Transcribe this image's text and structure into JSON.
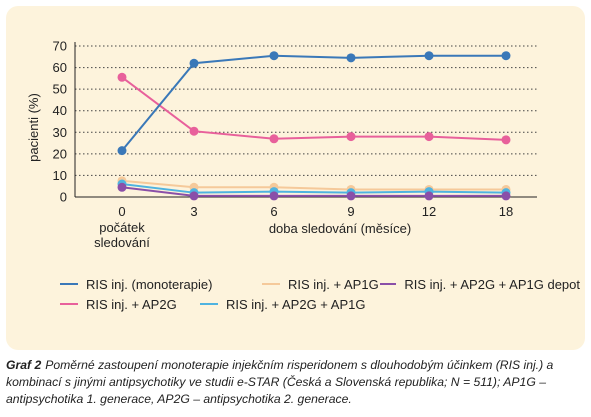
{
  "chart_data": {
    "type": "line",
    "title": "",
    "xlabel": "doba sledování (měsíce)",
    "ylabel": "pacienti (%)",
    "x": [
      "0",
      "3",
      "6",
      "9",
      "12",
      "18"
    ],
    "x_first_label_extra": [
      "počátek",
      "sledování"
    ],
    "yticks": [
      0,
      10,
      20,
      30,
      40,
      50,
      60,
      70
    ],
    "ylim": [
      0,
      70
    ],
    "grid": "horizontal dotted",
    "legend_position": "bottom",
    "series": [
      {
        "name": "RIS inj. (monoterapie)",
        "values": [
          21.5,
          62,
          65.5,
          64.5,
          65.5,
          65.5
        ],
        "color": "#3a78b8"
      },
      {
        "name": "RIS inj. + AP1G",
        "values": [
          7.5,
          4.5,
          4.5,
          3.5,
          3.5,
          3.5
        ],
        "color": "#f5c99a"
      },
      {
        "name": "RIS inj. + AP2G + AP1G depot",
        "values": [
          4.5,
          0.5,
          0.5,
          0.5,
          0.5,
          0.5
        ],
        "color": "#8a4fa8"
      },
      {
        "name": "RIS inj. + AP2G",
        "values": [
          55.5,
          30.5,
          27,
          28,
          28,
          26.5
        ],
        "color": "#e8609b"
      },
      {
        "name": "RIS inj. + AP2G + AP1G",
        "values": [
          6,
          2,
          2.5,
          2,
          2.5,
          2
        ],
        "color": "#4fb3e0"
      }
    ]
  },
  "legend_rows": [
    [
      0,
      1,
      2
    ],
    [
      3,
      4
    ]
  ],
  "caption": {
    "title": "Graf 2",
    "text": "Poměrné zastoupení monoterapie injekčním risperidonem s dlouhodobým účinkem (RIS inj.) a kombinací s jinými antipsychotiky ve studii e-STAR (Česká a Slovenská republika; N = 511); AP1G – antipsychotika 1. generace, AP2G – antipsychotika 2. generace."
  }
}
